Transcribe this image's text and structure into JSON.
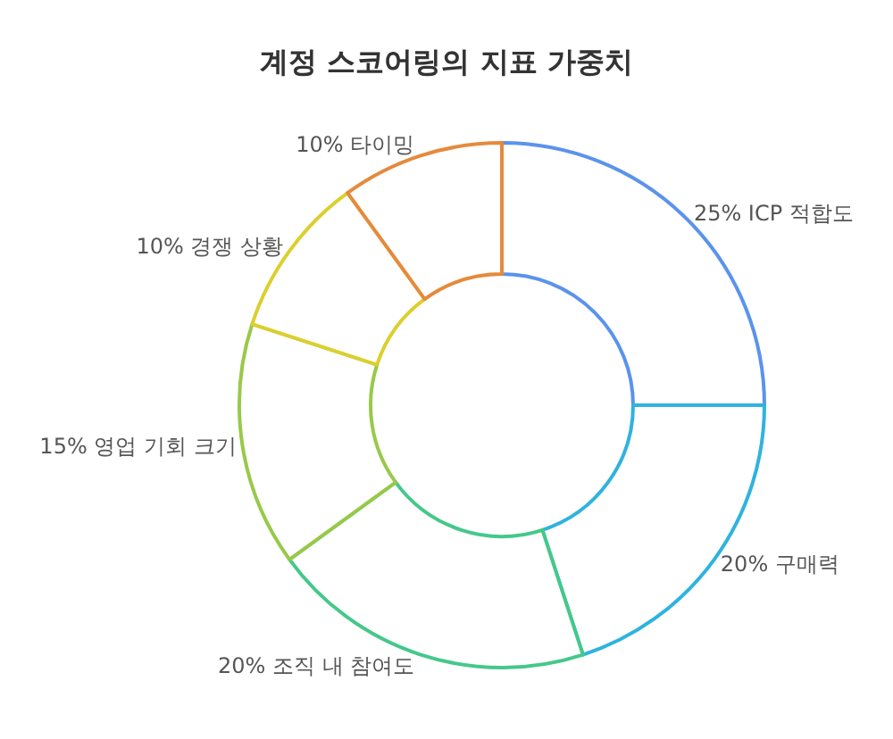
{
  "chart_data": {
    "type": "donut",
    "title": "계정 스코어링의 지표 가중치",
    "categories": [
      "ICP 적합도",
      "구매력",
      "조직 내 참여도",
      "영업 기회 크기",
      "경쟁 상황",
      "타이밍"
    ],
    "values": [
      25,
      20,
      20,
      15,
      10,
      10
    ],
    "value_labels": [
      "25%",
      "20%",
      "20%",
      "15%",
      "10%",
      "10%"
    ],
    "colors": [
      "#5b93ec",
      "#2fb3de",
      "#45c88a",
      "#98c94a",
      "#dccf2e",
      "#e58a3c"
    ],
    "legend": false
  }
}
